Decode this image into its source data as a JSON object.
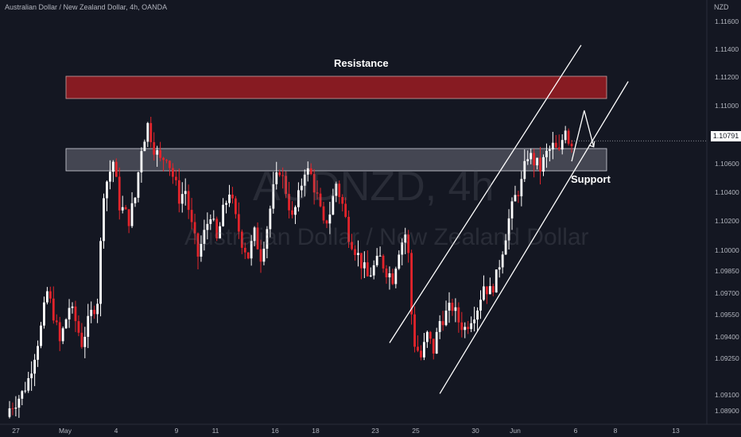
{
  "header": {
    "title": "Australian Dollar / New Zealand Dollar, 4h, OANDA"
  },
  "watermark": {
    "symbol": "AUDNZD, 4h",
    "name": "Australian Dollar / New Zealand Dollar"
  },
  "annotations": {
    "resistance_label": "Resistance",
    "support_label": "Support"
  },
  "price_axis": {
    "currency": "NZD",
    "current_price": "1.10791"
  },
  "colors": {
    "background": "#141722",
    "bull": "#ffffff",
    "bear": "#e3242b",
    "resistance_zone": "#9b1c22",
    "support_zone": "#6b6e7a",
    "channel": "#ffffff"
  },
  "chart_data": {
    "type": "candlestick",
    "symbol": "AUDNZD",
    "timeframe": "4h",
    "exchange": "OANDA",
    "ylim": [
      1.0885,
      1.1175
    ],
    "y_ticks": [
      "1.11600",
      "1.11400",
      "1.11200",
      "1.11000",
      "1.10800",
      "1.10600",
      "1.10400",
      "1.10200",
      "1.10000",
      "1.09850",
      "1.09700",
      "1.09550",
      "1.09400",
      "1.09250",
      "1.09100",
      "1.08900"
    ],
    "x_ticks": [
      "27",
      "May",
      "4",
      "9",
      "11",
      "16",
      "18",
      "23",
      "25",
      "30",
      "Jun",
      "6",
      "8",
      "13"
    ],
    "resistance_zone": [
      1.1105,
      1.112
    ],
    "support_zone": [
      1.1055,
      1.107
    ],
    "last_price": 1.10791,
    "close_path": [
      [
        0,
        1.0895
      ],
      [
        4,
        1.0905
      ],
      [
        6,
        1.0915
      ],
      [
        10,
        1.095
      ],
      [
        12,
        1.0975
      ],
      [
        14,
        1.096
      ],
      [
        16,
        1.094
      ],
      [
        19,
        1.0965
      ],
      [
        21,
        1.0955
      ],
      [
        23,
        1.094
      ],
      [
        26,
        1.096
      ],
      [
        28,
        1.097
      ],
      [
        30,
        1.1045
      ],
      [
        33,
        1.1065
      ],
      [
        35,
        1.1035
      ],
      [
        38,
        1.1025
      ],
      [
        40,
        1.104
      ],
      [
        42,
        1.1075
      ],
      [
        44,
        1.109
      ],
      [
        46,
        1.1075
      ],
      [
        48,
        1.1065
      ],
      [
        50,
        1.107
      ],
      [
        52,
        1.1055
      ],
      [
        54,
        1.104
      ],
      [
        56,
        1.1045
      ],
      [
        58,
        1.102
      ],
      [
        60,
        1.1
      ],
      [
        62,
        1.1015
      ],
      [
        64,
        1.103
      ],
      [
        66,
        1.101
      ],
      [
        68,
        1.103
      ],
      [
        70,
        1.1045
      ],
      [
        72,
        1.1025
      ],
      [
        74,
        1.101
      ],
      [
        76,
        1.1
      ],
      [
        78,
        1.1015
      ],
      [
        80,
        1.1
      ],
      [
        82,
        1.102
      ],
      [
        84,
        1.1045
      ],
      [
        86,
        1.106
      ],
      [
        88,
        1.1045
      ],
      [
        90,
        1.1025
      ],
      [
        92,
        1.104
      ],
      [
        94,
        1.106
      ],
      [
        96,
        1.1055
      ],
      [
        98,
        1.104
      ],
      [
        100,
        1.102
      ],
      [
        102,
        1.103
      ],
      [
        104,
        1.105
      ],
      [
        106,
        1.1035
      ],
      [
        108,
        1.1015
      ],
      [
        110,
        1.1005
      ],
      [
        112,
        1.0995
      ],
      [
        114,
        1.0985
      ],
      [
        116,
        1.0992
      ],
      [
        118,
        1.0998
      ],
      [
        120,
        1.099
      ],
      [
        122,
        1.0985
      ],
      [
        124,
        1.1005
      ],
      [
        126,
        1.1015
      ],
      [
        127,
        1.1
      ],
      [
        128,
        1.096
      ],
      [
        129,
        1.094
      ],
      [
        131,
        1.093
      ],
      [
        133,
        1.0945
      ],
      [
        135,
        1.0935
      ],
      [
        137,
        1.0955
      ],
      [
        139,
        1.096
      ],
      [
        141,
        1.0965
      ],
      [
        143,
        1.0955
      ],
      [
        145,
        1.095
      ],
      [
        147,
        1.0958
      ],
      [
        149,
        1.0965
      ],
      [
        151,
        1.098
      ],
      [
        153,
        1.0975
      ],
      [
        155,
        1.0985
      ],
      [
        157,
        1.1005
      ],
      [
        159,
        1.1025
      ],
      [
        161,
        1.104
      ],
      [
        163,
        1.105
      ],
      [
        165,
        1.107
      ],
      [
        167,
        1.1065
      ],
      [
        169,
        1.106
      ],
      [
        171,
        1.107
      ],
      [
        173,
        1.1075
      ],
      [
        175,
        1.107
      ],
      [
        177,
        1.109
      ],
      [
        178,
        1.108
      ],
      [
        179,
        1.1079
      ]
    ],
    "channel": {
      "upper": [
        [
          121,
          1.094
        ],
        [
          182,
          1.1145
        ]
      ],
      "lower": [
        [
          137,
          1.0905
        ],
        [
          197,
          1.112
        ]
      ]
    },
    "projection": [
      [
        179,
        1.1065
      ],
      [
        183,
        1.11
      ],
      [
        186,
        1.1075
      ]
    ]
  }
}
